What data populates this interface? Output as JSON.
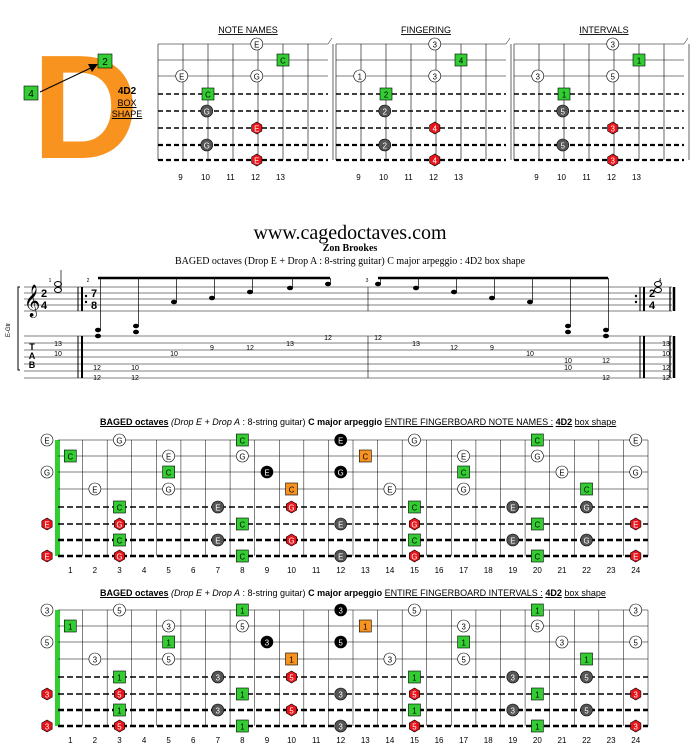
{
  "logo": {
    "letter": "D",
    "finger_top": "2",
    "finger_left": "4",
    "color": "#f7931e"
  },
  "shape_label": {
    "code": "4D2",
    "line1": "BOX",
    "line2": "SHAPE"
  },
  "small_diagrams": {
    "titles": [
      "NOTE NAMES",
      "FINGERING",
      "INTERVALS"
    ],
    "fret_numbers": [
      "9",
      "10",
      "11",
      "12",
      "13"
    ],
    "open_labels": [
      [
        "E",
        "G"
      ],
      [
        "3",
        "5"
      ],
      [
        "3",
        "5"
      ]
    ],
    "marker_labels": [
      [
        "E",
        "C",
        "E",
        "G",
        "C",
        "G",
        "E",
        "G",
        "E"
      ],
      [
        "3",
        "4",
        "1",
        "3",
        "2",
        "2",
        "4",
        "2",
        "4"
      ],
      [
        "3",
        "1",
        "3",
        "5",
        "1",
        "5",
        "3",
        "5",
        "3"
      ]
    ]
  },
  "website": "www.cagedoctaves.com",
  "author": "Zon Brookes",
  "subtitle": "BAGED octaves (Drop E + Drop A : 8-string guitar) C major arpeggio : 4D2 box shape",
  "score": {
    "tuning_label": "E-Gtr",
    "time_sig_a": [
      "2",
      "4"
    ],
    "time_sig_b": [
      "7",
      "8"
    ],
    "time_sig_c": [
      "2",
      "4"
    ],
    "measure_numbers": [
      "1",
      "2",
      "3",
      "4"
    ],
    "tab_letters": [
      "T",
      "A",
      "B"
    ],
    "tab_m1": [
      "13",
      "10",
      "12",
      "12"
    ],
    "tab_m2": [
      "12",
      "10",
      "10",
      "9",
      "12",
      "13",
      "12"
    ],
    "tab_m3": [
      "12",
      "13",
      "12",
      "9",
      "10",
      "10",
      "12"
    ],
    "tab_m3_low": [
      "10",
      "12"
    ],
    "tab_m4": [
      "13",
      "10",
      "12",
      "12"
    ]
  },
  "fingerboard_1": {
    "title_main": "BAGED octaves",
    "title_drop": "(Drop E + Drop A",
    "title_mid": ": 8-string guitar)",
    "title_arp": "C major arpeggio",
    "title_tail": "ENTIRE FINGERBOARD NOTE NAMES :",
    "title_shape": "4D2",
    "title_end": "box shape",
    "open_labels": [
      "E",
      "",
      "G",
      "",
      "",
      "E",
      "",
      "E"
    ]
  },
  "fingerboard_2": {
    "title_main": "BAGED octaves",
    "title_drop": "(Drop E + Drop A",
    "title_mid": ": 8-string guitar)",
    "title_arp": "C major arpeggio",
    "title_tail": "ENTIRE FINGERBOARD INTERVALS :",
    "title_shape": "4D2",
    "title_end": "box shape",
    "open_labels": [
      "3",
      "",
      "5",
      "",
      "",
      "3",
      "",
      "3"
    ]
  },
  "fret_numbers": [
    "1",
    "2",
    "3",
    "4",
    "5",
    "6",
    "7",
    "8",
    "9",
    "10",
    "11",
    "12",
    "13",
    "14",
    "15",
    "16",
    "17",
    "18",
    "19",
    "20",
    "21",
    "22",
    "23",
    "24"
  ],
  "colors": {
    "green": "#33cc33",
    "red": "#e8151b",
    "orange": "#f7931e",
    "dark": "#555555",
    "black": "#000000"
  }
}
